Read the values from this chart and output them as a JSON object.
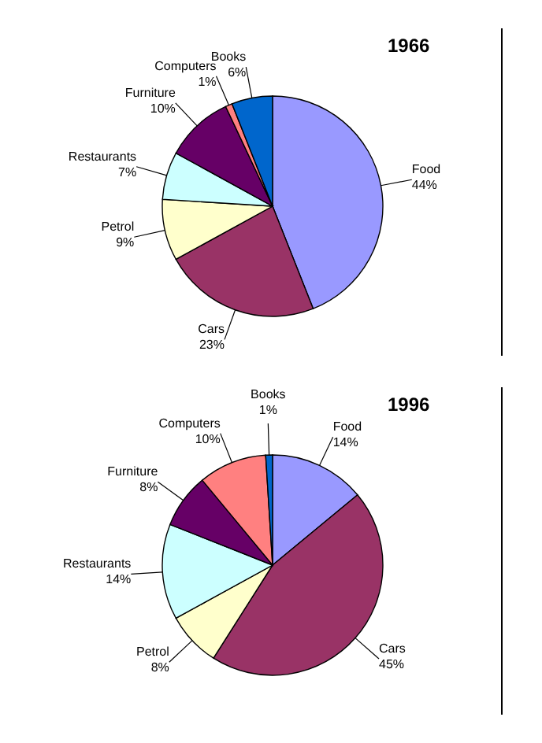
{
  "chart_data": [
    {
      "type": "pie",
      "title": "1966",
      "categories": [
        "Food",
        "Cars",
        "Petrol",
        "Restaurants",
        "Furniture",
        "Computers",
        "Books"
      ],
      "values": [
        44,
        23,
        9,
        7,
        10,
        1,
        6
      ],
      "value_labels": [
        "44%",
        "23%",
        "9%",
        "7%",
        "10%",
        "1%",
        "6%"
      ],
      "colors": [
        "#9999ff",
        "#993366",
        "#ffffcc",
        "#ccffff",
        "#660066",
        "#ff8080",
        "#0066cc"
      ],
      "legend": false
    },
    {
      "type": "pie",
      "title": "1996",
      "categories": [
        "Food",
        "Cars",
        "Petrol",
        "Restaurants",
        "Furniture",
        "Computers",
        "Books"
      ],
      "values": [
        14,
        45,
        8,
        14,
        8,
        10,
        1
      ],
      "value_labels": [
        "14%",
        "45%",
        "8%",
        "14%",
        "8%",
        "10%",
        "1%"
      ],
      "colors": [
        "#9999ff",
        "#993366",
        "#ffffcc",
        "#ccffff",
        "#660066",
        "#ff8080",
        "#0066cc"
      ],
      "legend": false
    }
  ]
}
